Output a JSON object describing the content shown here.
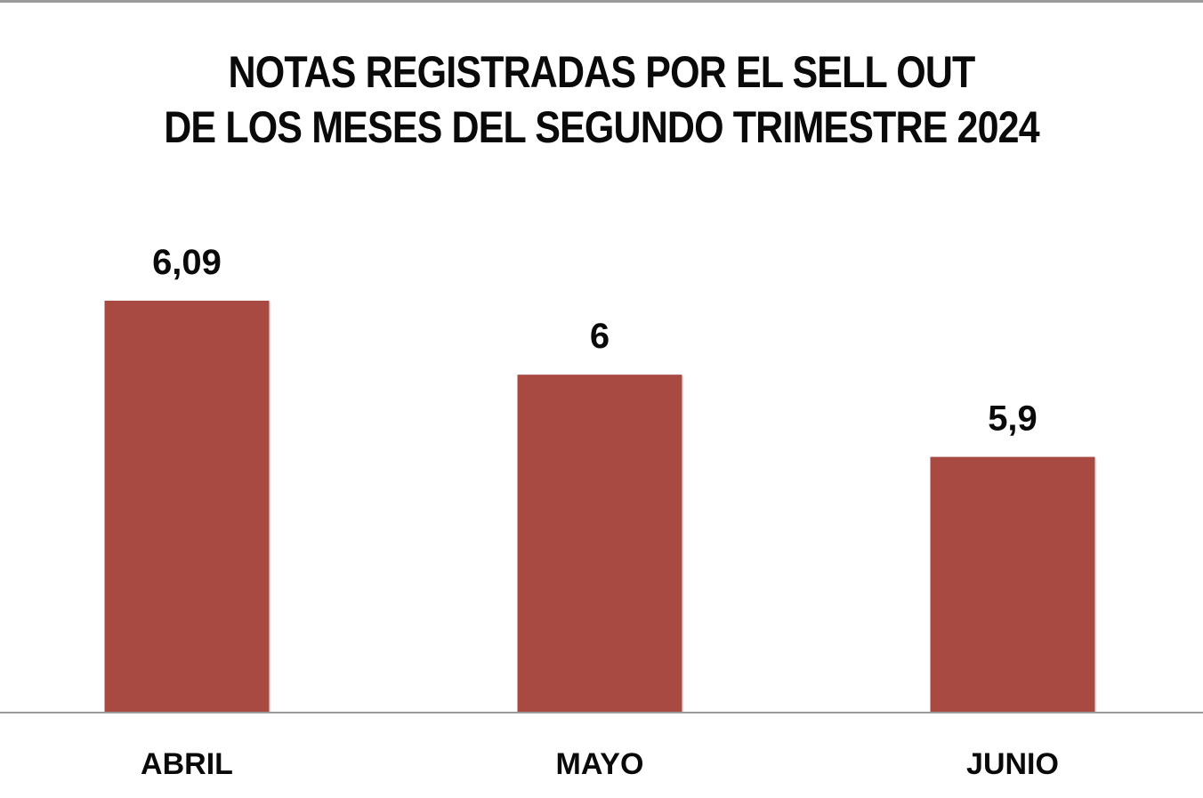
{
  "chart_data": {
    "type": "bar",
    "title_lines": [
      "NOTAS REGISTRADAS POR EL SELL OUT",
      "DE LOS MESES DEL SEGUNDO TRIMESTRE 2024"
    ],
    "categories": [
      "ABRIL",
      "MAYO",
      "JUNIO"
    ],
    "values": [
      6.09,
      6,
      5.9
    ],
    "value_labels": [
      "6,09",
      "6",
      "5,9"
    ],
    "bar_color": "#a84a42",
    "axis_color": "#9a9a9a",
    "ylim": [
      5.59,
      6.09
    ],
    "grid": false,
    "legend": "none"
  }
}
